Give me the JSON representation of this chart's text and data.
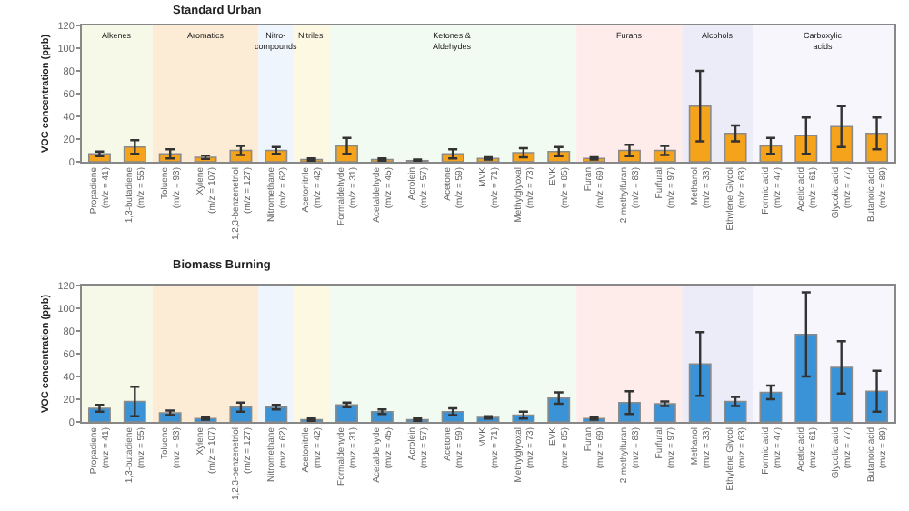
{
  "chart_data": [
    {
      "type": "bar",
      "title": "Standard Urban",
      "ylabel": "VOC concentration (ppb)",
      "categories": [
        "Propadiene (m/z = 41)",
        "1,3-butadiene (m/z = 55)",
        "Toluene (m/z = 93)",
        "Xylene (m/z = 107)",
        "1,2,3-benzenetriol (m/z = 127)",
        "Nitromethane (m/z = 62)",
        "Acetonitrile (m/z = 42)",
        "Formaldehyde (m/z = 31)",
        "Acetaldehyde (m/z = 45)",
        "Acrolein (m/z = 57)",
        "Acetone (m/z = 59)",
        "MVK (m/z = 71)",
        "Methylglyoxal (m/z = 73)",
        "EVK (m/z = 85)",
        "Furan (m/z = 69)",
        "2-methylfuran (m/z = 83)",
        "Furfural (m/z = 97)",
        "Methanol (m/z = 33)",
        "Ethylene Glycol (m/z = 63)",
        "Formic acid (m/z = 47)",
        "Acetic acid (m/z = 61)",
        "Glycolic acid (m/z = 77)",
        "Butanoic acid (m/z = 89)"
      ],
      "values": [
        7,
        13,
        7,
        4,
        10,
        10,
        2,
        14,
        2,
        1,
        7,
        3,
        8,
        9,
        3,
        10,
        10,
        49,
        25,
        14,
        23,
        31,
        25
      ],
      "errors": [
        2,
        6,
        4,
        1.5,
        4,
        3,
        1,
        7,
        1,
        1,
        4,
        1,
        4,
        4,
        1,
        5,
        4,
        31,
        7,
        7,
        16,
        18,
        14
      ],
      "color": "#f5a31a",
      "ylim": [
        0,
        120
      ],
      "yticks": [
        0,
        20,
        40,
        60,
        80,
        100,
        120
      ],
      "bands": [
        {
          "axis": "x",
          "from": "Propadiene (m/z = 41)",
          "to": "1,3-butadiene (m/z = 55)",
          "label": "Alkenes",
          "color": "#f6f8e8"
        },
        {
          "axis": "x",
          "from": "Toluene (m/z = 93)",
          "to": "1,2,3-benzenetriol (m/z = 127)",
          "label": "Aromatics",
          "color": "#fdecd5"
        },
        {
          "axis": "x",
          "from": "Nitromethane (m/z = 62)",
          "to": "Nitromethane (m/z = 62)",
          "label": "Nitro-compounds",
          "color": "#eef5fd"
        },
        {
          "axis": "x",
          "from": "Acetonitrile (m/z = 42)",
          "to": "Acetonitrile (m/z = 42)",
          "label": "Nitriles",
          "color": "#fdf8e2"
        },
        {
          "axis": "x",
          "from": "Formaldehyde (m/z = 31)",
          "to": "EVK (m/z = 85)",
          "label": "Ketones & Aldehydes",
          "color": "#f1fbf1"
        },
        {
          "axis": "x",
          "from": "Furan (m/z = 69)",
          "to": "Furfural (m/z = 97)",
          "label": "Furans",
          "color": "#fdecea"
        },
        {
          "axis": "x",
          "from": "Methanol (m/z = 33)",
          "to": "Ethylene Glycol (m/z = 63)",
          "label": "Alcohols",
          "color": "#ececf9"
        },
        {
          "axis": "x",
          "from": "Formic acid (m/z = 47)",
          "to": "Butanoic acid (m/z = 89)",
          "label": "Carboxylic acids",
          "color": "#f6f6fc"
        }
      ]
    },
    {
      "type": "bar",
      "title": "Biomass Burning",
      "ylabel": "VOC concentration (ppb)",
      "categories": [
        "Propadiene (m/z = 41)",
        "1,3-butadiene (m/z = 55)",
        "Toluene (m/z = 93)",
        "Xylene (m/z = 107)",
        "1,2,3-benzenetriol (m/z = 127)",
        "Nitromethane (m/z = 62)",
        "Acetonitrile (m/z = 42)",
        "Formaldehyde (m/z = 31)",
        "Acetaldehyde (m/z = 45)",
        "Acrolein (m/z = 57)",
        "Acetone (m/z = 59)",
        "MVK (m/z = 71)",
        "Methylglyoxal (m/z = 73)",
        "EVK (m/z = 85)",
        "Furan (m/z = 69)",
        "2-methylfuran (m/z = 83)",
        "Furfural (m/z = 97)",
        "Methanol (m/z = 33)",
        "Ethylene Glycol (m/z = 63)",
        "Formic acid (m/z = 47)",
        "Acetic acid (m/z = 61)",
        "Glycolic acid (m/z = 77)",
        "Butanoic acid (m/z = 89)"
      ],
      "values": [
        12,
        18,
        8,
        3,
        13,
        13,
        2,
        15,
        9,
        2,
        9,
        4,
        6,
        21,
        3,
        17,
        16,
        51,
        18,
        26,
        77,
        48,
        27
      ],
      "errors": [
        3,
        13,
        2,
        1,
        4,
        2,
        1,
        2,
        2,
        1,
        3,
        1,
        3,
        5,
        1,
        10,
        2,
        28,
        4,
        6,
        37,
        23,
        18
      ],
      "color": "#3a93d6",
      "ylim": [
        0,
        120
      ],
      "yticks": [
        0,
        20,
        40,
        60,
        80,
        100,
        120
      ],
      "bands": [
        {
          "axis": "x",
          "from": "Propadiene (m/z = 41)",
          "to": "1,3-butadiene (m/z = 55)",
          "color": "#f6f8e8"
        },
        {
          "axis": "x",
          "from": "Toluene (m/z = 93)",
          "to": "1,2,3-benzenetriol (m/z = 127)",
          "color": "#fdecd5"
        },
        {
          "axis": "x",
          "from": "Nitromethane (m/z = 62)",
          "to": "Nitromethane (m/z = 62)",
          "color": "#eef5fd"
        },
        {
          "axis": "x",
          "from": "Acetonitrile (m/z = 42)",
          "to": "Acetonitrile (m/z = 42)",
          "color": "#fdf8e2"
        },
        {
          "axis": "x",
          "from": "Formaldehyde (m/z = 31)",
          "to": "EVK (m/z = 85)",
          "color": "#f1fbf1"
        },
        {
          "axis": "x",
          "from": "Furan (m/z = 69)",
          "to": "Furfural (m/z = 97)",
          "color": "#fdecea"
        },
        {
          "axis": "x",
          "from": "Methanol (m/z = 33)",
          "to": "Ethylene Glycol (m/z = 63)",
          "color": "#ececf9"
        },
        {
          "axis": "x",
          "from": "Formic acid (m/z = 47)",
          "to": "Butanoic acid (m/z = 89)",
          "color": "#f6f6fc"
        }
      ]
    }
  ]
}
